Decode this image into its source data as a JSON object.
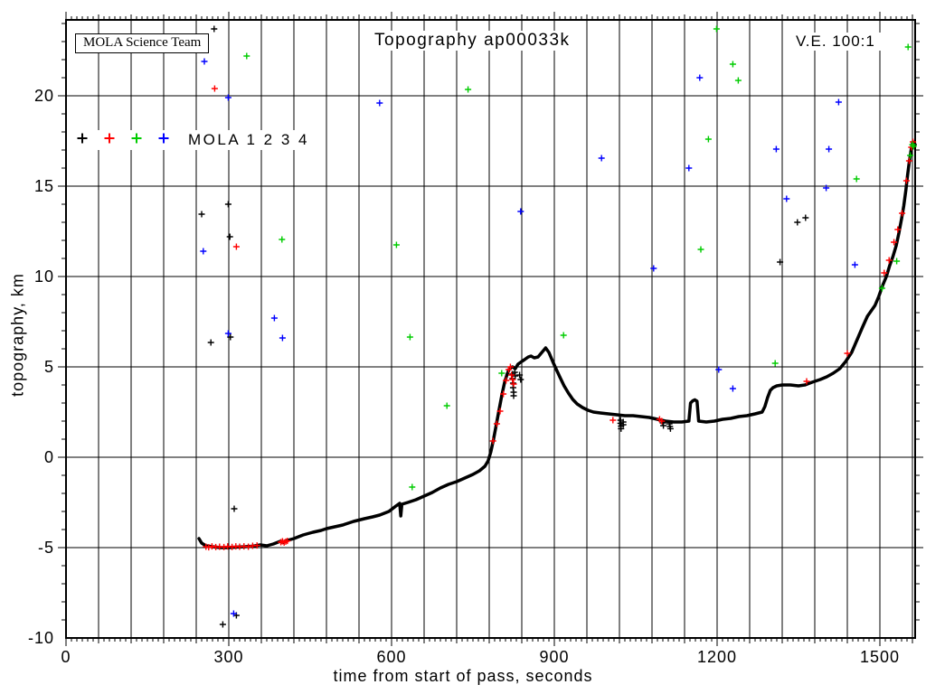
{
  "header": {
    "team_box": "MOLA Science Team",
    "title": "Topography ap00033k",
    "ve_label": "V.E. 100:1"
  },
  "legend": {
    "label": "MOLA 1 2 3 4",
    "marker_colors": [
      "#000000",
      "#ff0000",
      "#00cc00",
      "#0000ff"
    ],
    "marker_names": [
      "mola-1",
      "mola-2",
      "mola-3",
      "mola-4"
    ]
  },
  "axes": {
    "xlabel": "time from start of pass, seconds",
    "ylabel": "topography, km",
    "xticks": [
      0,
      300,
      600,
      900,
      1200,
      1500
    ],
    "yticks": [
      20,
      15,
      10,
      5,
      0,
      -5,
      -10
    ],
    "x_grid_step": 60,
    "x_minor_step": 10,
    "y_grid_values": [
      20,
      15,
      10,
      5,
      0,
      -5
    ],
    "y_minor_step": 1,
    "xlim": [
      0,
      1565
    ],
    "ylim": [
      -10,
      24.2
    ],
    "grid": true
  },
  "chart_data": {
    "type": "scatter",
    "title": "Topography ap00033k",
    "xlabel": "time from start of pass, seconds",
    "ylabel": "topography, km",
    "xlim": [
      0,
      1565
    ],
    "ylim": [
      -10,
      24.2
    ],
    "legend_position": "upper-left-inside",
    "series": [
      {
        "name": "MOLA 1 ground profile",
        "color": "#000000",
        "line": true,
        "points": [
          [
            245,
            -4.5
          ],
          [
            250,
            -4.75
          ],
          [
            258,
            -4.9
          ],
          [
            270,
            -4.95
          ],
          [
            285,
            -5.0
          ],
          [
            300,
            -5.0
          ],
          [
            315,
            -4.97
          ],
          [
            330,
            -4.95
          ],
          [
            345,
            -4.92
          ],
          [
            358,
            -4.85
          ],
          [
            370,
            -4.9
          ],
          [
            382,
            -4.8
          ],
          [
            395,
            -4.65
          ],
          [
            400,
            -4.72
          ],
          [
            408,
            -4.6
          ],
          [
            420,
            -4.5
          ],
          [
            437,
            -4.3
          ],
          [
            455,
            -4.15
          ],
          [
            470,
            -4.05
          ],
          [
            480,
            -3.95
          ],
          [
            495,
            -3.85
          ],
          [
            510,
            -3.75
          ],
          [
            530,
            -3.55
          ],
          [
            550,
            -3.4
          ],
          [
            565,
            -3.3
          ],
          [
            578,
            -3.2
          ],
          [
            595,
            -3.0
          ],
          [
            608,
            -2.7
          ],
          [
            615,
            -2.55
          ],
          [
            617,
            -3.25
          ],
          [
            619,
            -2.6
          ],
          [
            630,
            -2.5
          ],
          [
            645,
            -2.35
          ],
          [
            660,
            -2.15
          ],
          [
            675,
            -1.95
          ],
          [
            690,
            -1.7
          ],
          [
            705,
            -1.5
          ],
          [
            720,
            -1.35
          ],
          [
            735,
            -1.15
          ],
          [
            750,
            -0.95
          ],
          [
            762,
            -0.75
          ],
          [
            772,
            -0.5
          ],
          [
            778,
            -0.2
          ],
          [
            783,
            0.3
          ],
          [
            788,
            1.0
          ],
          [
            793,
            1.8
          ],
          [
            798,
            2.6
          ],
          [
            803,
            3.4
          ],
          [
            808,
            4.1
          ],
          [
            813,
            4.6
          ],
          [
            818,
            4.95
          ],
          [
            823,
            5.0
          ],
          [
            828,
            4.9
          ],
          [
            833,
            5.15
          ],
          [
            840,
            5.3
          ],
          [
            845,
            5.4
          ],
          [
            852,
            5.55
          ],
          [
            857,
            5.6
          ],
          [
            863,
            5.5
          ],
          [
            870,
            5.55
          ],
          [
            877,
            5.8
          ],
          [
            884,
            6.05
          ],
          [
            890,
            5.8
          ],
          [
            897,
            5.3
          ],
          [
            903,
            4.9
          ],
          [
            910,
            4.45
          ],
          [
            918,
            3.95
          ],
          [
            926,
            3.55
          ],
          [
            934,
            3.2
          ],
          [
            942,
            2.95
          ],
          [
            952,
            2.75
          ],
          [
            962,
            2.6
          ],
          [
            972,
            2.5
          ],
          [
            985,
            2.45
          ],
          [
            1000,
            2.4
          ],
          [
            1015,
            2.35
          ],
          [
            1030,
            2.3
          ],
          [
            1045,
            2.3
          ],
          [
            1060,
            2.25
          ],
          [
            1075,
            2.2
          ],
          [
            1090,
            2.1
          ],
          [
            1105,
            2.0
          ],
          [
            1120,
            1.95
          ],
          [
            1135,
            1.95
          ],
          [
            1148,
            2.0
          ],
          [
            1151,
            3.0
          ],
          [
            1155,
            3.12
          ],
          [
            1159,
            3.18
          ],
          [
            1163,
            3.1
          ],
          [
            1166,
            2.0
          ],
          [
            1180,
            1.95
          ],
          [
            1195,
            2.0
          ],
          [
            1210,
            2.1
          ],
          [
            1225,
            2.15
          ],
          [
            1240,
            2.25
          ],
          [
            1255,
            2.3
          ],
          [
            1270,
            2.4
          ],
          [
            1283,
            2.5
          ],
          [
            1288,
            2.8
          ],
          [
            1293,
            3.3
          ],
          [
            1298,
            3.7
          ],
          [
            1303,
            3.85
          ],
          [
            1310,
            3.95
          ],
          [
            1320,
            4.0
          ],
          [
            1335,
            4.0
          ],
          [
            1350,
            3.95
          ],
          [
            1362,
            4.0
          ],
          [
            1375,
            4.15
          ],
          [
            1390,
            4.3
          ],
          [
            1402,
            4.45
          ],
          [
            1414,
            4.65
          ],
          [
            1426,
            4.9
          ],
          [
            1437,
            5.3
          ],
          [
            1448,
            5.8
          ],
          [
            1458,
            6.5
          ],
          [
            1468,
            7.2
          ],
          [
            1477,
            7.8
          ],
          [
            1484,
            8.1
          ],
          [
            1491,
            8.4
          ],
          [
            1498,
            8.9
          ],
          [
            1505,
            9.5
          ],
          [
            1512,
            10.0
          ],
          [
            1518,
            10.6
          ],
          [
            1524,
            11.1
          ],
          [
            1530,
            11.7
          ],
          [
            1535,
            12.4
          ],
          [
            1540,
            13.2
          ],
          [
            1544,
            13.9
          ],
          [
            1548,
            14.8
          ],
          [
            1551,
            15.6
          ],
          [
            1554,
            16.3
          ],
          [
            1557,
            16.9
          ],
          [
            1559,
            17.25
          ],
          [
            1561,
            17.45
          ],
          [
            1563,
            17.4
          ],
          [
            1565,
            17.3
          ]
        ]
      },
      {
        "name": "MOLA 1 dropouts",
        "color": "#000000",
        "line": false,
        "points": [
          [
            823,
            4.6
          ],
          [
            823,
            4.35
          ],
          [
            824,
            4.1
          ],
          [
            824,
            3.85
          ],
          [
            825,
            3.6
          ],
          [
            825,
            3.4
          ],
          [
            827,
            4.7
          ],
          [
            828,
            4.5
          ],
          [
            836,
            4.55
          ],
          [
            838,
            4.3
          ],
          [
            1022,
            2.05
          ],
          [
            1022,
            1.88
          ],
          [
            1023,
            1.72
          ],
          [
            1023,
            1.58
          ],
          [
            1027,
            1.95
          ],
          [
            1027,
            1.8
          ],
          [
            1100,
            1.9
          ],
          [
            1101,
            1.75
          ],
          [
            1112,
            1.85
          ],
          [
            1113,
            1.7
          ],
          [
            1114,
            1.58
          ]
        ]
      },
      {
        "name": "MOLA 2 on-track returns",
        "color": "#ff0000",
        "line": false,
        "points": [
          [
            258,
            -4.95
          ],
          [
            263,
            -4.98
          ],
          [
            269,
            -4.93
          ],
          [
            276,
            -4.97
          ],
          [
            283,
            -4.95
          ],
          [
            291,
            -4.97
          ],
          [
            298,
            -4.93
          ],
          [
            306,
            -4.96
          ],
          [
            313,
            -4.93
          ],
          [
            320,
            -4.95
          ],
          [
            328,
            -4.93
          ],
          [
            336,
            -4.95
          ],
          [
            344,
            -4.9
          ],
          [
            352,
            -4.88
          ],
          [
            396,
            -4.7
          ],
          [
            399,
            -4.65
          ],
          [
            402,
            -4.72
          ],
          [
            405,
            -4.67
          ],
          [
            408,
            -4.63
          ],
          [
            787,
            0.9
          ],
          [
            794,
            1.85
          ],
          [
            800,
            2.55
          ],
          [
            806,
            3.5
          ],
          [
            811,
            4.25
          ],
          [
            816,
            4.85
          ],
          [
            819,
            5.0
          ],
          [
            821,
            4.55
          ],
          [
            823,
            4.3
          ],
          [
            825,
            4.05
          ],
          [
            1008,
            2.05
          ],
          [
            1094,
            2.1
          ],
          [
            1098,
            2.0
          ],
          [
            1365,
            4.2
          ],
          [
            1440,
            5.75
          ],
          [
            1508,
            10.2
          ],
          [
            1517,
            10.9
          ],
          [
            1526,
            11.9
          ],
          [
            1533,
            12.6
          ],
          [
            1541,
            13.5
          ],
          [
            1549,
            15.3
          ],
          [
            1554,
            16.4
          ],
          [
            1558,
            17.15
          ],
          [
            1561,
            17.45
          ]
        ]
      },
      {
        "name": "MOLA 1 noise",
        "color": "#000000",
        "line": false,
        "points": [
          [
            273,
            23.7
          ],
          [
            250,
            13.45
          ],
          [
            299,
            14.0
          ],
          [
            302,
            12.2
          ],
          [
            267,
            6.35
          ],
          [
            303,
            6.65
          ],
          [
            310,
            -2.85
          ],
          [
            289,
            -9.25
          ],
          [
            314,
            -8.75
          ],
          [
            1316,
            10.8
          ],
          [
            1348,
            13.0
          ],
          [
            1363,
            13.25
          ]
        ]
      },
      {
        "name": "MOLA 2 noise",
        "color": "#ff0000",
        "line": false,
        "points": [
          [
            274,
            20.4
          ],
          [
            314,
            11.65
          ]
        ]
      },
      {
        "name": "MOLA 3 noise",
        "color": "#00cc00",
        "line": false,
        "points": [
          [
            333,
            22.2
          ],
          [
            398,
            12.05
          ],
          [
            741,
            20.35
          ],
          [
            609,
            11.75
          ],
          [
            634,
            6.65
          ],
          [
            917,
            6.75
          ],
          [
            702,
            2.85
          ],
          [
            803,
            4.65
          ],
          [
            638,
            -1.65
          ],
          [
            1199,
            23.7
          ],
          [
            1229,
            21.75
          ],
          [
            1239,
            20.85
          ],
          [
            1552,
            22.7
          ],
          [
            1184,
            17.6
          ],
          [
            1457,
            15.4
          ],
          [
            1170,
            11.5
          ],
          [
            1531,
            10.85
          ],
          [
            1504,
            9.35
          ],
          [
            1307,
            5.2
          ],
          [
            1556,
            16.7
          ],
          [
            1560,
            17.3
          ],
          [
            1562,
            17.2
          ]
        ]
      },
      {
        "name": "MOLA 4 noise",
        "color": "#0000ff",
        "line": false,
        "points": [
          [
            255,
            21.9
          ],
          [
            299,
            19.9
          ],
          [
            253,
            11.4
          ],
          [
            384,
            7.7
          ],
          [
            299,
            6.85
          ],
          [
            399,
            6.6
          ],
          [
            578,
            19.6
          ],
          [
            838,
            13.6
          ],
          [
            987,
            16.55
          ],
          [
            1168,
            21.0
          ],
          [
            1424,
            19.65
          ],
          [
            1309,
            17.05
          ],
          [
            1406,
            17.05
          ],
          [
            1148,
            16.0
          ],
          [
            1401,
            14.9
          ],
          [
            1328,
            14.3
          ],
          [
            1083,
            10.45
          ],
          [
            1454,
            10.65
          ],
          [
            1203,
            4.85
          ],
          [
            1229,
            3.8
          ],
          [
            309,
            -8.65
          ]
        ]
      }
    ]
  }
}
